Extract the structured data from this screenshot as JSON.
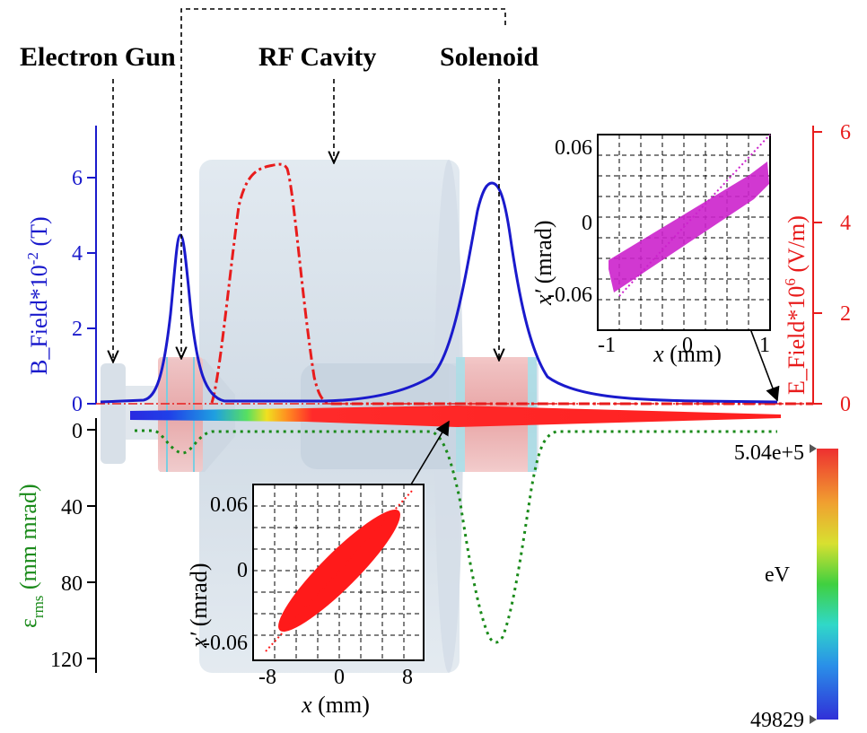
{
  "labels": {
    "electron_gun": "Electron Gun",
    "rf_cavity": "RF Cavity",
    "solenoid": "Solenoid"
  },
  "axes": {
    "b_field": {
      "label_main": "B_Field*10",
      "label_exp": "-2",
      "label_unit": " (T)",
      "ticks": [
        "0",
        "2",
        "4",
        "6"
      ],
      "color": "#1a1acc"
    },
    "e_field": {
      "label_main": "E_Field*10",
      "label_exp": "6",
      "label_unit": " (V/m)",
      "ticks": [
        "0",
        "2",
        "4",
        "6"
      ],
      "color": "#e81c1c"
    },
    "emittance": {
      "label_main": "ε",
      "label_sub": "rms",
      "label_unit": " (mm mrad)",
      "ticks": [
        "0",
        "40",
        "80",
        "120"
      ],
      "color": "#1a8a1a"
    }
  },
  "colorbar": {
    "max_label": "5.04e+5",
    "min_label": "49829",
    "unit": "eV"
  },
  "inset_top": {
    "xlabel_var": "x",
    "xlabel_unit": " (mm)",
    "ylabel_var": "x′",
    "ylabel_unit": " (mrad)",
    "xticks": [
      "-1",
      "0",
      "1"
    ],
    "yticks": [
      "0.06",
      "0",
      "-0.06"
    ],
    "color": "#d020d8"
  },
  "inset_bottom": {
    "xlabel_var": "x",
    "xlabel_unit": " (mm)",
    "ylabel_var": "x′",
    "ylabel_unit": " (mrad)",
    "xticks": [
      "-8",
      "0",
      "8"
    ],
    "yticks": [
      "0.06",
      "0",
      "-0.06"
    ],
    "color": "#ff1a1a"
  }
}
